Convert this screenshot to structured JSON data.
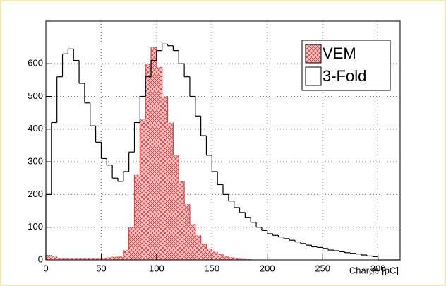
{
  "chart_data": {
    "type": "histogram",
    "x_label": "Charge [pC]",
    "bins": [
      0,
      5,
      10,
      15,
      20,
      25,
      30,
      35,
      40,
      45,
      50,
      55,
      60,
      65,
      70,
      75,
      80,
      85,
      90,
      95,
      100,
      105,
      110,
      115,
      120,
      125,
      130,
      135,
      140,
      145,
      150,
      155,
      160,
      165,
      170,
      175,
      180,
      185,
      190,
      195,
      200,
      205,
      210,
      215,
      220,
      225,
      230,
      235,
      240,
      245,
      250,
      255,
      260,
      265,
      270,
      275,
      280,
      285,
      290,
      295,
      300,
      305,
      310,
      315,
      320
    ],
    "series": [
      {
        "name": "VEM",
        "color": "#d04848",
        "fill": "#f3c4c4",
        "style": "hatched",
        "values": [
          15,
          10,
          5,
          5,
          5,
          5,
          5,
          5,
          5,
          5,
          5,
          8,
          10,
          12,
          30,
          100,
          260,
          430,
          600,
          650,
          590,
          500,
          420,
          320,
          240,
          170,
          110,
          75,
          50,
          35,
          25,
          18,
          12,
          8,
          5,
          3,
          2,
          1,
          1,
          0,
          0,
          0,
          0,
          0,
          0,
          0,
          0,
          0,
          0,
          0,
          0,
          0,
          0,
          0,
          0,
          0,
          0,
          0,
          0,
          0,
          0,
          0,
          0,
          0
        ]
      },
      {
        "name": "3-Fold",
        "color": "#000000",
        "fill": "#ffffff",
        "style": "outline",
        "values": [
          200,
          420,
          560,
          630,
          645,
          610,
          540,
          480,
          410,
          360,
          310,
          290,
          250,
          240,
          270,
          330,
          420,
          500,
          560,
          610,
          640,
          660,
          655,
          640,
          600,
          560,
          500,
          440,
          380,
          320,
          270,
          230,
          200,
          180,
          160,
          145,
          130,
          115,
          100,
          90,
          80,
          75,
          70,
          65,
          60,
          55,
          50,
          45,
          40,
          38,
          35,
          30,
          28,
          25,
          22,
          20,
          18,
          15,
          12,
          10,
          0,
          0,
          0,
          0
        ]
      }
    ],
    "xlim": [
      0,
      320
    ],
    "ylim": [
      0,
      730
    ],
    "xticks": [
      0,
      50,
      100,
      150,
      200,
      250,
      300
    ],
    "yticks": [
      0,
      100,
      200,
      300,
      400,
      500,
      600
    ],
    "grid": true,
    "legend": "top-right"
  }
}
